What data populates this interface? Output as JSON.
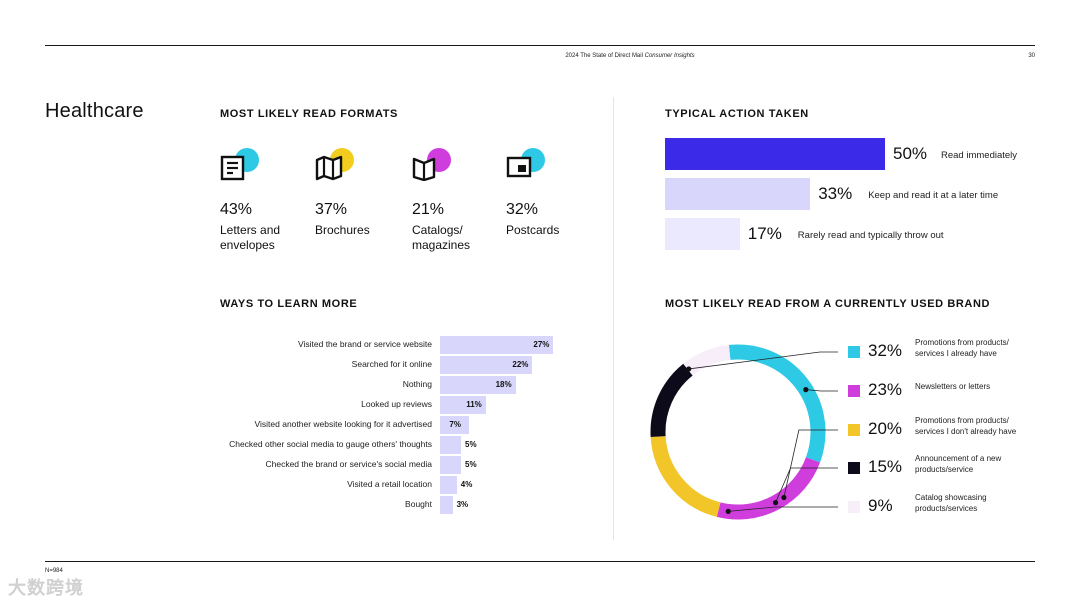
{
  "header": {
    "title_plain": "2024 The State of Direct Mail ",
    "title_italic": "Consumer Insights",
    "page_number": "30"
  },
  "section_title": "Healthcare",
  "formats": {
    "heading": "MOST LIKELY READ FORMATS",
    "items": [
      {
        "pct": "43%",
        "label": "Letters and envelopes",
        "icon": "letter-icon",
        "dot_color": "#2ec9e4"
      },
      {
        "pct": "37%",
        "label": "Brochures",
        "icon": "brochure-map-icon",
        "dot_color": "#f2cd1e"
      },
      {
        "pct": "21%",
        "label": "Catalogs/ magazines",
        "icon": "catalog-book-icon",
        "dot_color": "#cf3ddd"
      },
      {
        "pct": "32%",
        "label": "Postcards",
        "icon": "postcard-icon",
        "dot_color": "#2ec9e4"
      }
    ]
  },
  "learn": {
    "heading": "WAYS TO LEARN MORE",
    "bar_color": "#d9d6fb"
  },
  "action": {
    "heading": "TYPICAL ACTION TAKEN"
  },
  "brand": {
    "heading": "MOST LIKELY READ FROM A CURRENTLY USED BRAND"
  },
  "footnote": "N=984",
  "watermark": "大数跨境",
  "chart_data": [
    {
      "type": "bar",
      "orientation": "horizontal",
      "title": "WAYS TO LEARN MORE",
      "categories": [
        "Visited the brand or service website",
        "Searched for it online",
        "Nothing",
        "Looked up reviews",
        "Visited another website looking for it advertised",
        "Checked other social media to gauge others' thoughts",
        "Checked the brand or service's social media",
        "Visited a retail location",
        "Bought"
      ],
      "values": [
        27,
        22,
        18,
        11,
        7,
        5,
        5,
        4,
        3
      ],
      "labels": [
        "27%",
        "22%",
        "18%",
        "11%",
        "7%",
        "5%",
        "5%",
        "4%",
        "3%"
      ],
      "xlim": [
        0,
        100
      ]
    },
    {
      "type": "bar",
      "orientation": "horizontal",
      "title": "TYPICAL ACTION TAKEN",
      "categories": [
        "Read immediately",
        "Keep and read it at a later time",
        "Rarely read and typically throw out"
      ],
      "values": [
        50,
        33,
        17
      ],
      "labels": [
        "50%",
        "33%",
        "17%"
      ],
      "colors": [
        "#3b2be8",
        "#d9d6fb",
        "#ebe9fd"
      ],
      "xlim": [
        0,
        100
      ]
    },
    {
      "type": "pie",
      "style": "donut",
      "title": "MOST LIKELY READ FROM A CURRENTLY USED BRAND",
      "categories": [
        "Promotions from products/ services I already have",
        "Newsletters or letters",
        "Promotions from products/ services I don't already have",
        "Announcement of a new products/service",
        "Catalog showcasing products/services"
      ],
      "values": [
        32,
        23,
        20,
        15,
        9
      ],
      "labels": [
        "32%",
        "23%",
        "20%",
        "15%",
        "9%"
      ],
      "colors": [
        "#2ec9e4",
        "#cf3ddd",
        "#f2c529",
        "#0d0b1a",
        "#f8eefa"
      ]
    }
  ]
}
